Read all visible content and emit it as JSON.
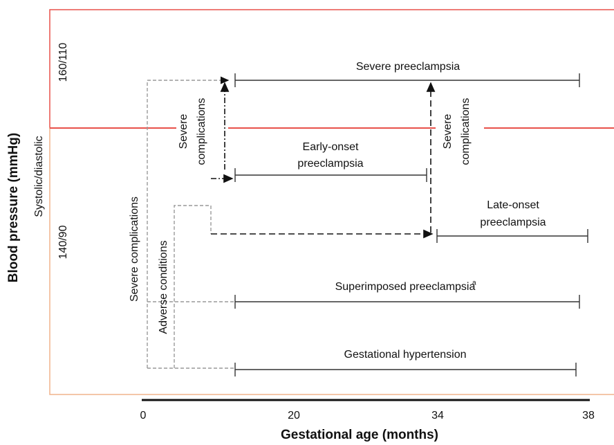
{
  "y_axis": {
    "label": "Blood pressure (mmHg)",
    "sublabel": "Systolic/diastolic",
    "levels": [
      "160/110",
      "140/90"
    ]
  },
  "x_axis": {
    "label": "Gestational age (months)",
    "ticks": [
      0,
      20,
      34,
      38
    ]
  },
  "ranges": [
    {
      "label": [
        "Severe preeclampsia"
      ]
    },
    {
      "label": [
        "Early-onset",
        "preeclampsia"
      ]
    },
    {
      "label": [
        "Late-onset",
        "preeclampsia"
      ]
    },
    {
      "label": [
        "Superimposed preeclampsia"
      ],
      "superscript": "a"
    },
    {
      "label": [
        "Gestational hypertension"
      ]
    }
  ],
  "paths": {
    "left_severe": "Severe complications",
    "adverse": "Adverse conditions",
    "middle_severe": [
      "Severe",
      "complications"
    ],
    "right_severe": [
      "Severe",
      "complications"
    ]
  }
}
